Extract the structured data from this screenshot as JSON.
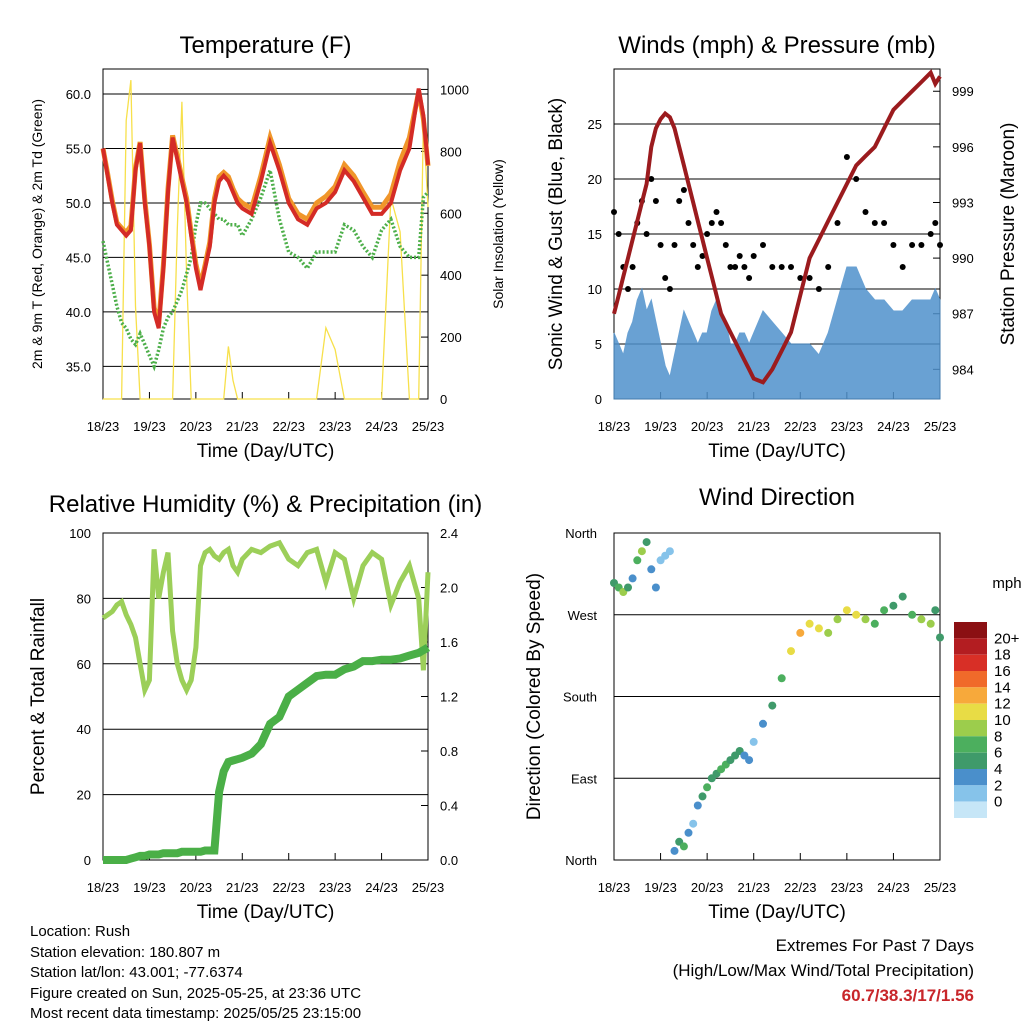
{
  "chart_data": [
    {
      "type": "line",
      "title": "Temperature (F)",
      "xlabel": "Time (Day/UTC)",
      "ylabel": "2m & 9m T (Red, Orange) & 2m Td (Green)",
      "y2label": "Solar Insolation (Yellow)",
      "xticks": [
        "18/23",
        "19/23",
        "20/23",
        "21/23",
        "22/23",
        "23/23",
        "24/23",
        "25/23"
      ],
      "yticks": [
        "35.0",
        "40.0",
        "45.0",
        "50.0",
        "55.0",
        "60.0"
      ],
      "y2ticks": [
        "0",
        "200",
        "400",
        "600",
        "800",
        "1000"
      ],
      "ylim": [
        32,
        62.3
      ],
      "y2lim": [
        0,
        1066
      ],
      "grid": "horizontal",
      "x": [
        0,
        0.1,
        0.2,
        0.3,
        0.4,
        0.5,
        0.6,
        0.7,
        0.8,
        0.9,
        1.0,
        1.1,
        1.2,
        1.3,
        1.4,
        1.5,
        1.6,
        1.7,
        1.8,
        1.9,
        2.0,
        2.1,
        2.2,
        2.3,
        2.4,
        2.5,
        2.6,
        2.7,
        2.8,
        2.9,
        3.0,
        3.2,
        3.4,
        3.6,
        3.8,
        4.0,
        4.2,
        4.4,
        4.6,
        4.8,
        5.0,
        5.2,
        5.4,
        5.6,
        5.8,
        6.0,
        6.2,
        6.4,
        6.6,
        6.8,
        6.9,
        7.0
      ],
      "series": [
        {
          "color": "#d42b26",
          "values": [
            55.0,
            52.5,
            50.0,
            48.0,
            47.5,
            47.0,
            47.5,
            53.0,
            55.5,
            50.0,
            46.0,
            40.0,
            38.5,
            44.0,
            51.0,
            56.0,
            54.0,
            52.0,
            50.0,
            47.0,
            44.0,
            42.0,
            44.0,
            46.0,
            50.0,
            52.0,
            52.5,
            52.0,
            51.0,
            50.0,
            49.5,
            49.0,
            52.0,
            55.5,
            53.0,
            50.0,
            48.5,
            48.0,
            49.5,
            50.0,
            51.0,
            53.0,
            52.0,
            50.5,
            49.0,
            49.0,
            50.0,
            53.0,
            55.0,
            60.5,
            58.0,
            53.5
          ]
        },
        {
          "color": "#f0962a",
          "values": [
            55.0,
            52.7,
            50.2,
            48.2,
            47.7,
            47.3,
            47.9,
            53.2,
            55.6,
            50.3,
            46.2,
            40.4,
            38.9,
            44.3,
            51.3,
            56.2,
            54.3,
            52.3,
            50.4,
            47.3,
            44.4,
            42.4,
            44.3,
            46.4,
            50.4,
            52.4,
            52.8,
            52.4,
            51.3,
            50.4,
            50.0,
            49.5,
            52.5,
            56.0,
            53.5,
            50.4,
            49.0,
            48.5,
            50.0,
            50.6,
            51.5,
            53.5,
            52.5,
            51.0,
            49.6,
            49.6,
            50.8,
            53.8,
            56.0,
            60.2,
            57.7,
            53.4
          ]
        },
        {
          "color": "#4daf4a",
          "values": [
            46.5,
            44.5,
            42.5,
            40.5,
            39.0,
            38.5,
            37.5,
            37.0,
            38.0,
            37.0,
            36.0,
            35.0,
            36.5,
            38.5,
            39.5,
            40.0,
            41.0,
            42.0,
            43.5,
            45.0,
            48.0,
            50.0,
            50.0,
            49.5,
            49.0,
            48.5,
            48.5,
            48.0,
            48.0,
            48.0,
            47.0,
            48.5,
            50.5,
            53.0,
            48.5,
            45.5,
            45.0,
            44.0,
            45.5,
            45.5,
            45.5,
            48.0,
            47.5,
            46.0,
            45.0,
            47.5,
            48.5,
            46.0,
            45.0,
            45.0,
            50.5,
            51.0
          ]
        },
        {
          "color": "#f7e04b",
          "values": [
            0,
            0,
            0,
            0,
            0,
            900,
            1030,
            300,
            0,
            0,
            0,
            0,
            0,
            0,
            0,
            0,
            550,
            960,
            400,
            0,
            0,
            0,
            0,
            0,
            0,
            0,
            0,
            170,
            60,
            0,
            0,
            0,
            0,
            0,
            0,
            0,
            0,
            0,
            0,
            230,
            160,
            0,
            0,
            0,
            0,
            0,
            650,
            540,
            0,
            0,
            900,
            620
          ]
        }
      ]
    },
    {
      "type": "scatter",
      "title": "Winds (mph) & Pressure (mb)",
      "xlabel": "Time (Day/UTC)",
      "ylabel": "Sonic Wind & Gust (Blue, Black)",
      "y2label": "Station Pressure (Maroon)",
      "xticks": [
        "18/23",
        "19/23",
        "20/23",
        "21/23",
        "22/23",
        "23/23",
        "24/23",
        "25/23"
      ],
      "yticks": [
        "0",
        "5",
        "10",
        "15",
        "20",
        "25"
      ],
      "y2ticks": [
        "984",
        "987",
        "990",
        "993",
        "996",
        "999"
      ],
      "ylim": [
        0,
        30
      ],
      "y2lim": [
        982.4,
        1000.2
      ],
      "grid": "horizontal",
      "x": [
        0,
        0.1,
        0.2,
        0.3,
        0.4,
        0.5,
        0.6,
        0.7,
        0.8,
        0.9,
        1.0,
        1.1,
        1.2,
        1.3,
        1.4,
        1.5,
        1.6,
        1.7,
        1.8,
        1.9,
        2.0,
        2.1,
        2.2,
        2.3,
        2.4,
        2.5,
        2.6,
        2.7,
        2.8,
        2.9,
        3.0,
        3.2,
        3.4,
        3.6,
        3.8,
        4.0,
        4.2,
        4.4,
        4.6,
        4.8,
        5.0,
        5.2,
        5.4,
        5.6,
        5.8,
        6.0,
        6.2,
        6.4,
        6.6,
        6.8,
        6.9,
        7.0
      ],
      "series": [
        {
          "color": "#000000",
          "values": [
            17,
            15,
            12,
            10,
            12,
            16,
            18,
            15,
            20,
            18,
            14,
            11,
            10,
            14,
            18,
            19,
            16,
            14,
            12,
            13,
            15,
            16,
            17,
            16,
            14,
            12,
            12,
            13,
            12,
            11,
            13,
            14,
            12,
            12,
            12,
            11,
            11,
            10,
            12,
            16,
            22,
            20,
            17,
            16,
            16,
            14,
            12,
            14,
            14,
            15,
            16,
            14
          ]
        },
        {
          "color": "#4f91cc",
          "values": [
            6,
            5,
            4,
            6,
            7,
            9,
            10,
            8,
            9,
            7,
            5,
            3,
            2,
            4,
            6,
            8,
            7,
            6,
            5,
            6,
            6,
            8,
            9,
            8,
            7,
            5,
            5,
            6,
            6,
            5,
            6,
            8,
            7,
            6,
            5,
            5,
            5,
            4,
            6,
            9,
            12,
            12,
            10,
            9,
            9,
            8,
            8,
            9,
            9,
            9,
            10,
            9
          ]
        },
        {
          "color": "#9b1b1e",
          "values": [
            987,
            988,
            989,
            990,
            991,
            992,
            993,
            994,
            996,
            997,
            997.5,
            997.8,
            997.6,
            997,
            996,
            995,
            994,
            993,
            992,
            991,
            990,
            989,
            988,
            987,
            986.5,
            986,
            985.5,
            985,
            984.5,
            984,
            983.5,
            983.3,
            984,
            985,
            986,
            988,
            990,
            991,
            992,
            993,
            994,
            995,
            995.5,
            996,
            997,
            998,
            998.5,
            999,
            999.5,
            1000,
            999.4,
            999.8
          ]
        }
      ]
    },
    {
      "type": "line",
      "title": "Relative Humidity (%) & Precipitation (in)",
      "xlabel": "Time (Day/UTC)",
      "ylabel": "Percent & Total Rainfall",
      "xticks": [
        "18/23",
        "19/23",
        "20/23",
        "21/23",
        "22/23",
        "23/23",
        "24/23",
        "25/23"
      ],
      "yticks": [
        "0",
        "20",
        "40",
        "60",
        "80",
        "100"
      ],
      "y2ticks": [
        "0.0",
        "0.4",
        "0.8",
        "1.2",
        "1.6",
        "2.0",
        "2.4"
      ],
      "ylim": [
        0,
        100
      ],
      "y2lim": [
        0,
        2.4
      ],
      "grid": "horizontal",
      "x": [
        0,
        0.1,
        0.2,
        0.3,
        0.4,
        0.5,
        0.6,
        0.7,
        0.8,
        0.9,
        1.0,
        1.1,
        1.2,
        1.3,
        1.4,
        1.5,
        1.6,
        1.7,
        1.8,
        1.9,
        2.0,
        2.1,
        2.2,
        2.3,
        2.4,
        2.5,
        2.6,
        2.7,
        2.8,
        2.9,
        3.0,
        3.2,
        3.4,
        3.6,
        3.8,
        4.0,
        4.2,
        4.4,
        4.6,
        4.8,
        5.0,
        5.2,
        5.4,
        5.6,
        5.8,
        6.0,
        6.2,
        6.4,
        6.6,
        6.8,
        6.9,
        7.0
      ],
      "series": [
        {
          "name": "Relative Humidity",
          "color": "#9ccf59",
          "values": [
            74,
            75,
            76,
            78,
            79,
            75,
            72,
            68,
            60,
            52,
            55,
            95,
            80,
            88,
            94,
            70,
            60,
            55,
            52,
            55,
            65,
            90,
            94,
            95,
            93,
            92,
            94,
            95,
            90,
            88,
            92,
            95,
            94,
            96,
            97,
            92,
            90,
            94,
            95,
            85,
            94,
            92,
            80,
            90,
            94,
            92,
            78,
            85,
            90,
            80,
            58,
            88
          ]
        },
        {
          "name": "Total Precipitation",
          "color": "#4aaf47",
          "values": [
            0,
            0,
            0,
            0,
            0,
            0,
            0.01,
            0.02,
            0.03,
            0.03,
            0.04,
            0.04,
            0.04,
            0.05,
            0.05,
            0.05,
            0.05,
            0.06,
            0.06,
            0.06,
            0.06,
            0.06,
            0.07,
            0.07,
            0.07,
            0.5,
            0.65,
            0.72,
            0.73,
            0.74,
            0.75,
            0.78,
            0.85,
            1.0,
            1.05,
            1.2,
            1.25,
            1.3,
            1.35,
            1.36,
            1.36,
            1.4,
            1.42,
            1.46,
            1.46,
            1.47,
            1.47,
            1.48,
            1.5,
            1.52,
            1.54,
            1.56
          ]
        }
      ]
    },
    {
      "type": "scatter",
      "title": "Wind Direction",
      "xlabel": "Time (Day/UTC)",
      "ylabel": "Direction (Colored By Speed)",
      "xticks": [
        "18/23",
        "19/23",
        "20/23",
        "21/23",
        "22/23",
        "23/23",
        "24/23",
        "25/23"
      ],
      "yticks": [
        "North",
        "East",
        "South",
        "West",
        "North"
      ],
      "ylim": [
        0,
        360
      ],
      "grid": "horizontal",
      "legend": "right",
      "legend_title": "mph",
      "legend_levels": [
        "0",
        "2",
        "4",
        "6",
        "8",
        "10",
        "12",
        "14",
        "16",
        "18",
        "20+"
      ],
      "legend_colors": [
        "#c6e6f7",
        "#86c3ea",
        "#4a8fcb",
        "#3f9a6a",
        "#4caf5e",
        "#9ccd4c",
        "#e8dc45",
        "#f7a93b",
        "#f06a2a",
        "#d82f26",
        "#b31d21",
        "#8b1013"
      ],
      "x": [
        0,
        0.1,
        0.2,
        0.3,
        0.4,
        0.5,
        0.6,
        0.7,
        0.8,
        0.9,
        1.0,
        1.1,
        1.2,
        1.3,
        1.4,
        1.5,
        1.6,
        1.7,
        1.8,
        1.9,
        2.0,
        2.1,
        2.2,
        2.3,
        2.4,
        2.5,
        2.6,
        2.7,
        2.8,
        2.9,
        3.0,
        3.2,
        3.4,
        3.6,
        3.8,
        4.0,
        4.2,
        4.4,
        4.6,
        4.8,
        5.0,
        5.2,
        5.4,
        5.6,
        5.8,
        6.0,
        6.2,
        6.4,
        6.6,
        6.8,
        6.9,
        7.0
      ],
      "series": [
        {
          "name": "direction",
          "values": [
            305,
            300,
            295,
            300,
            310,
            330,
            340,
            350,
            320,
            300,
            330,
            335,
            340,
            10,
            20,
            15,
            30,
            40,
            60,
            70,
            80,
            90,
            95,
            100,
            105,
            110,
            115,
            120,
            115,
            110,
            130,
            150,
            170,
            200,
            230,
            250,
            260,
            255,
            250,
            265,
            275,
            270,
            265,
            260,
            275,
            280,
            290,
            270,
            265,
            260,
            275,
            245
          ],
          "speed": [
            6,
            8,
            10,
            7,
            5,
            9,
            11,
            7,
            5,
            4,
            3,
            2,
            3,
            4,
            6,
            8,
            5,
            3,
            4,
            6,
            8,
            7,
            6,
            9,
            8,
            6,
            7,
            6,
            5,
            4,
            3,
            4,
            6,
            9,
            12,
            15,
            13,
            12,
            11,
            10,
            13,
            12,
            11,
            9,
            8,
            7,
            6,
            9,
            10,
            11,
            7,
            6
          ]
        }
      ]
    }
  ],
  "info": {
    "location": "Location: Rush",
    "elevation": "Station elevation: 180.807 m",
    "latlon": "Station lat/lon: 43.001; -77.6374",
    "created": "Figure created on Sun, 2025-05-25, at 23:36 UTC",
    "recent": "Most recent data timestamp: 2025/05/25 23:15:00"
  },
  "extremes": {
    "line1": "Extremes For Past 7 Days",
    "line2": "(High/Low/Max Wind/Total Precipitation)",
    "values": "60.7/38.3/17/1.56"
  }
}
